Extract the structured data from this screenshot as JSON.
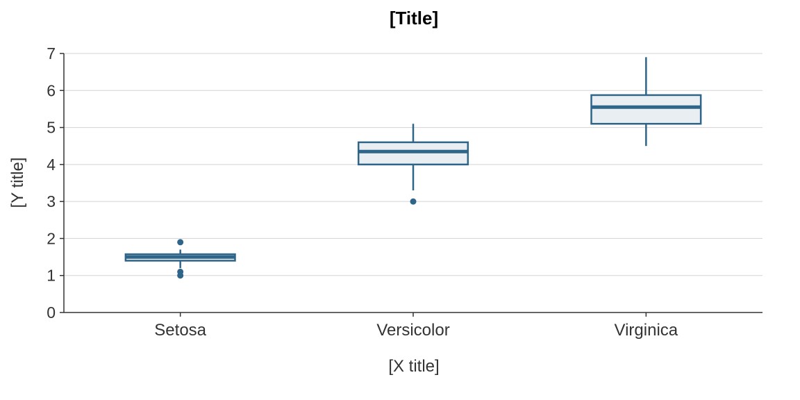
{
  "colors": {
    "box_stroke": "#2e6589",
    "box_fill": "#e8eef1",
    "grid": "#d3d3d3",
    "axis": "#333333"
  },
  "chart_data": {
    "type": "box",
    "title": "[Title]",
    "xlabel": "[X title]",
    "ylabel": "[Y title]",
    "ylim": [
      0,
      7
    ],
    "yticks": [
      0,
      1,
      2,
      3,
      4,
      5,
      6,
      7
    ],
    "grid": true,
    "categories": [
      "Setosa",
      "Versicolor",
      "Virginica"
    ],
    "boxes": [
      {
        "category": "Setosa",
        "whisker_low": 1.2,
        "q1": 1.4,
        "median": 1.5,
        "q3": 1.575,
        "whisker_high": 1.7,
        "outliers": [
          1.0,
          1.1,
          1.9
        ]
      },
      {
        "category": "Versicolor",
        "whisker_low": 3.3,
        "q1": 4.0,
        "median": 4.35,
        "q3": 4.6,
        "whisker_high": 5.1,
        "outliers": [
          3.0
        ]
      },
      {
        "category": "Virginica",
        "whisker_low": 4.5,
        "q1": 5.1,
        "median": 5.55,
        "q3": 5.875,
        "whisker_high": 6.9,
        "outliers": []
      }
    ]
  }
}
